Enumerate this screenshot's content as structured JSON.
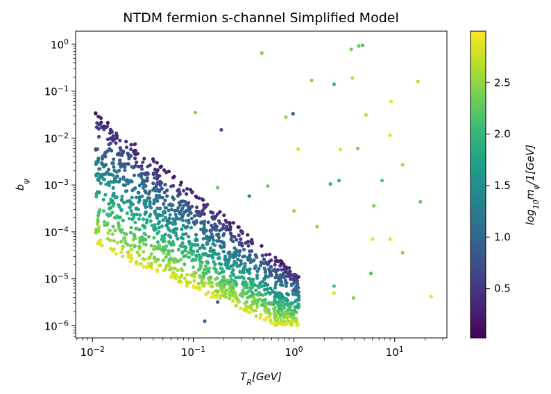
{
  "chart_data": {
    "type": "scatter",
    "title": "NTDM fermion s-channel Simplified Model",
    "xlabel": "T_R[GeV]",
    "ylabel": "b_ψ",
    "xscale": "log",
    "yscale": "log",
    "xlim": [
      0.0068,
      33
    ],
    "ylim": [
      5.5e-07,
      1.9
    ],
    "x_tick_labels": [
      "10^-2",
      "10^-1",
      "10^0",
      "10^1"
    ],
    "y_tick_labels": [
      "10^-6",
      "10^-5",
      "10^-4",
      "10^-3",
      "10^-2",
      "10^-1",
      "10^0"
    ],
    "colorbar": {
      "label": "log_10 m_ψ/1[GeV]",
      "colormap": "viridis",
      "range": [
        0.02,
        3.0
      ],
      "tick_labels": [
        "0.5",
        "1.0",
        "1.5",
        "2.0",
        "2.5"
      ],
      "tick_values": [
        0.5,
        1.0,
        1.5,
        2.0,
        2.5
      ]
    },
    "outlier_points": [
      {
        "x": 0.48,
        "y": 0.65,
        "c": 2.45
      },
      {
        "x": 3.7,
        "y": 0.78,
        "c": 2.35
      },
      {
        "x": 4.4,
        "y": 0.92,
        "c": 2.3
      },
      {
        "x": 4.8,
        "y": 0.95,
        "c": 2.2
      },
      {
        "x": 1.5,
        "y": 0.17,
        "c": 2.5
      },
      {
        "x": 2.5,
        "y": 0.14,
        "c": 2.0
      },
      {
        "x": 3.8,
        "y": 0.19,
        "c": 2.7
      },
      {
        "x": 17.0,
        "y": 0.16,
        "c": 2.65
      },
      {
        "x": 0.105,
        "y": 0.035,
        "c": 2.45
      },
      {
        "x": 0.19,
        "y": 0.015,
        "c": 0.7
      },
      {
        "x": 0.83,
        "y": 0.028,
        "c": 2.45
      },
      {
        "x": 0.98,
        "y": 0.033,
        "c": 1.0
      },
      {
        "x": 5.2,
        "y": 0.031,
        "c": 2.7
      },
      {
        "x": 9.2,
        "y": 0.06,
        "c": 2.85
      },
      {
        "x": 1.1,
        "y": 0.0058,
        "c": 2.85
      },
      {
        "x": 2.9,
        "y": 0.0057,
        "c": 2.9
      },
      {
        "x": 4.3,
        "y": 0.006,
        "c": 2.4
      },
      {
        "x": 9.0,
        "y": 0.0115,
        "c": 2.85
      },
      {
        "x": 12.0,
        "y": 0.0027,
        "c": 2.6
      },
      {
        "x": 0.175,
        "y": 0.00088,
        "c": 2.3
      },
      {
        "x": 0.55,
        "y": 0.00095,
        "c": 2.3
      },
      {
        "x": 0.36,
        "y": 0.00058,
        "c": 1.4
      },
      {
        "x": 2.3,
        "y": 0.00105,
        "c": 2.0
      },
      {
        "x": 2.8,
        "y": 0.00125,
        "c": 2.0
      },
      {
        "x": 7.5,
        "y": 0.00125,
        "c": 2.15
      },
      {
        "x": 1.0,
        "y": 0.00028,
        "c": 2.55
      },
      {
        "x": 6.2,
        "y": 0.00036,
        "c": 2.4
      },
      {
        "x": 18.0,
        "y": 0.00044,
        "c": 2.3
      },
      {
        "x": 1.7,
        "y": 0.00013,
        "c": 2.5
      },
      {
        "x": 6.0,
        "y": 7e-05,
        "c": 2.9
      },
      {
        "x": 9.0,
        "y": 7e-05,
        "c": 2.85
      },
      {
        "x": 12.0,
        "y": 3.6e-05,
        "c": 2.45
      },
      {
        "x": 5.8,
        "y": 1.3e-05,
        "c": 2.2
      },
      {
        "x": 2.5,
        "y": 7e-06,
        "c": 2.15
      },
      {
        "x": 2.5,
        "y": 5e-06,
        "c": 2.85
      },
      {
        "x": 3.9,
        "y": 3.9e-06,
        "c": 2.4
      },
      {
        "x": 23.0,
        "y": 4.2e-06,
        "c": 2.85
      },
      {
        "x": 0.13,
        "y": 1.25e-06,
        "c": 0.95
      },
      {
        "x": 0.175,
        "y": 3.2e-06,
        "c": 0.85
      }
    ],
    "dense_cloud": {
      "count": 1500,
      "description": "dense band of points between T_R 0.01 and 1.2 GeV, b_psi 1e-6 to 0.035; colour increases with decreasing b_psi",
      "log10_x_range": [
        -1.97,
        0.05
      ],
      "log10_y_upper_left": -1.45,
      "log10_y_upper_slope": -1.72,
      "log10_y_lower_left": -4.3,
      "log10_y_lower_slope": -0.95,
      "log10_y_floor": -6.0
    }
  }
}
